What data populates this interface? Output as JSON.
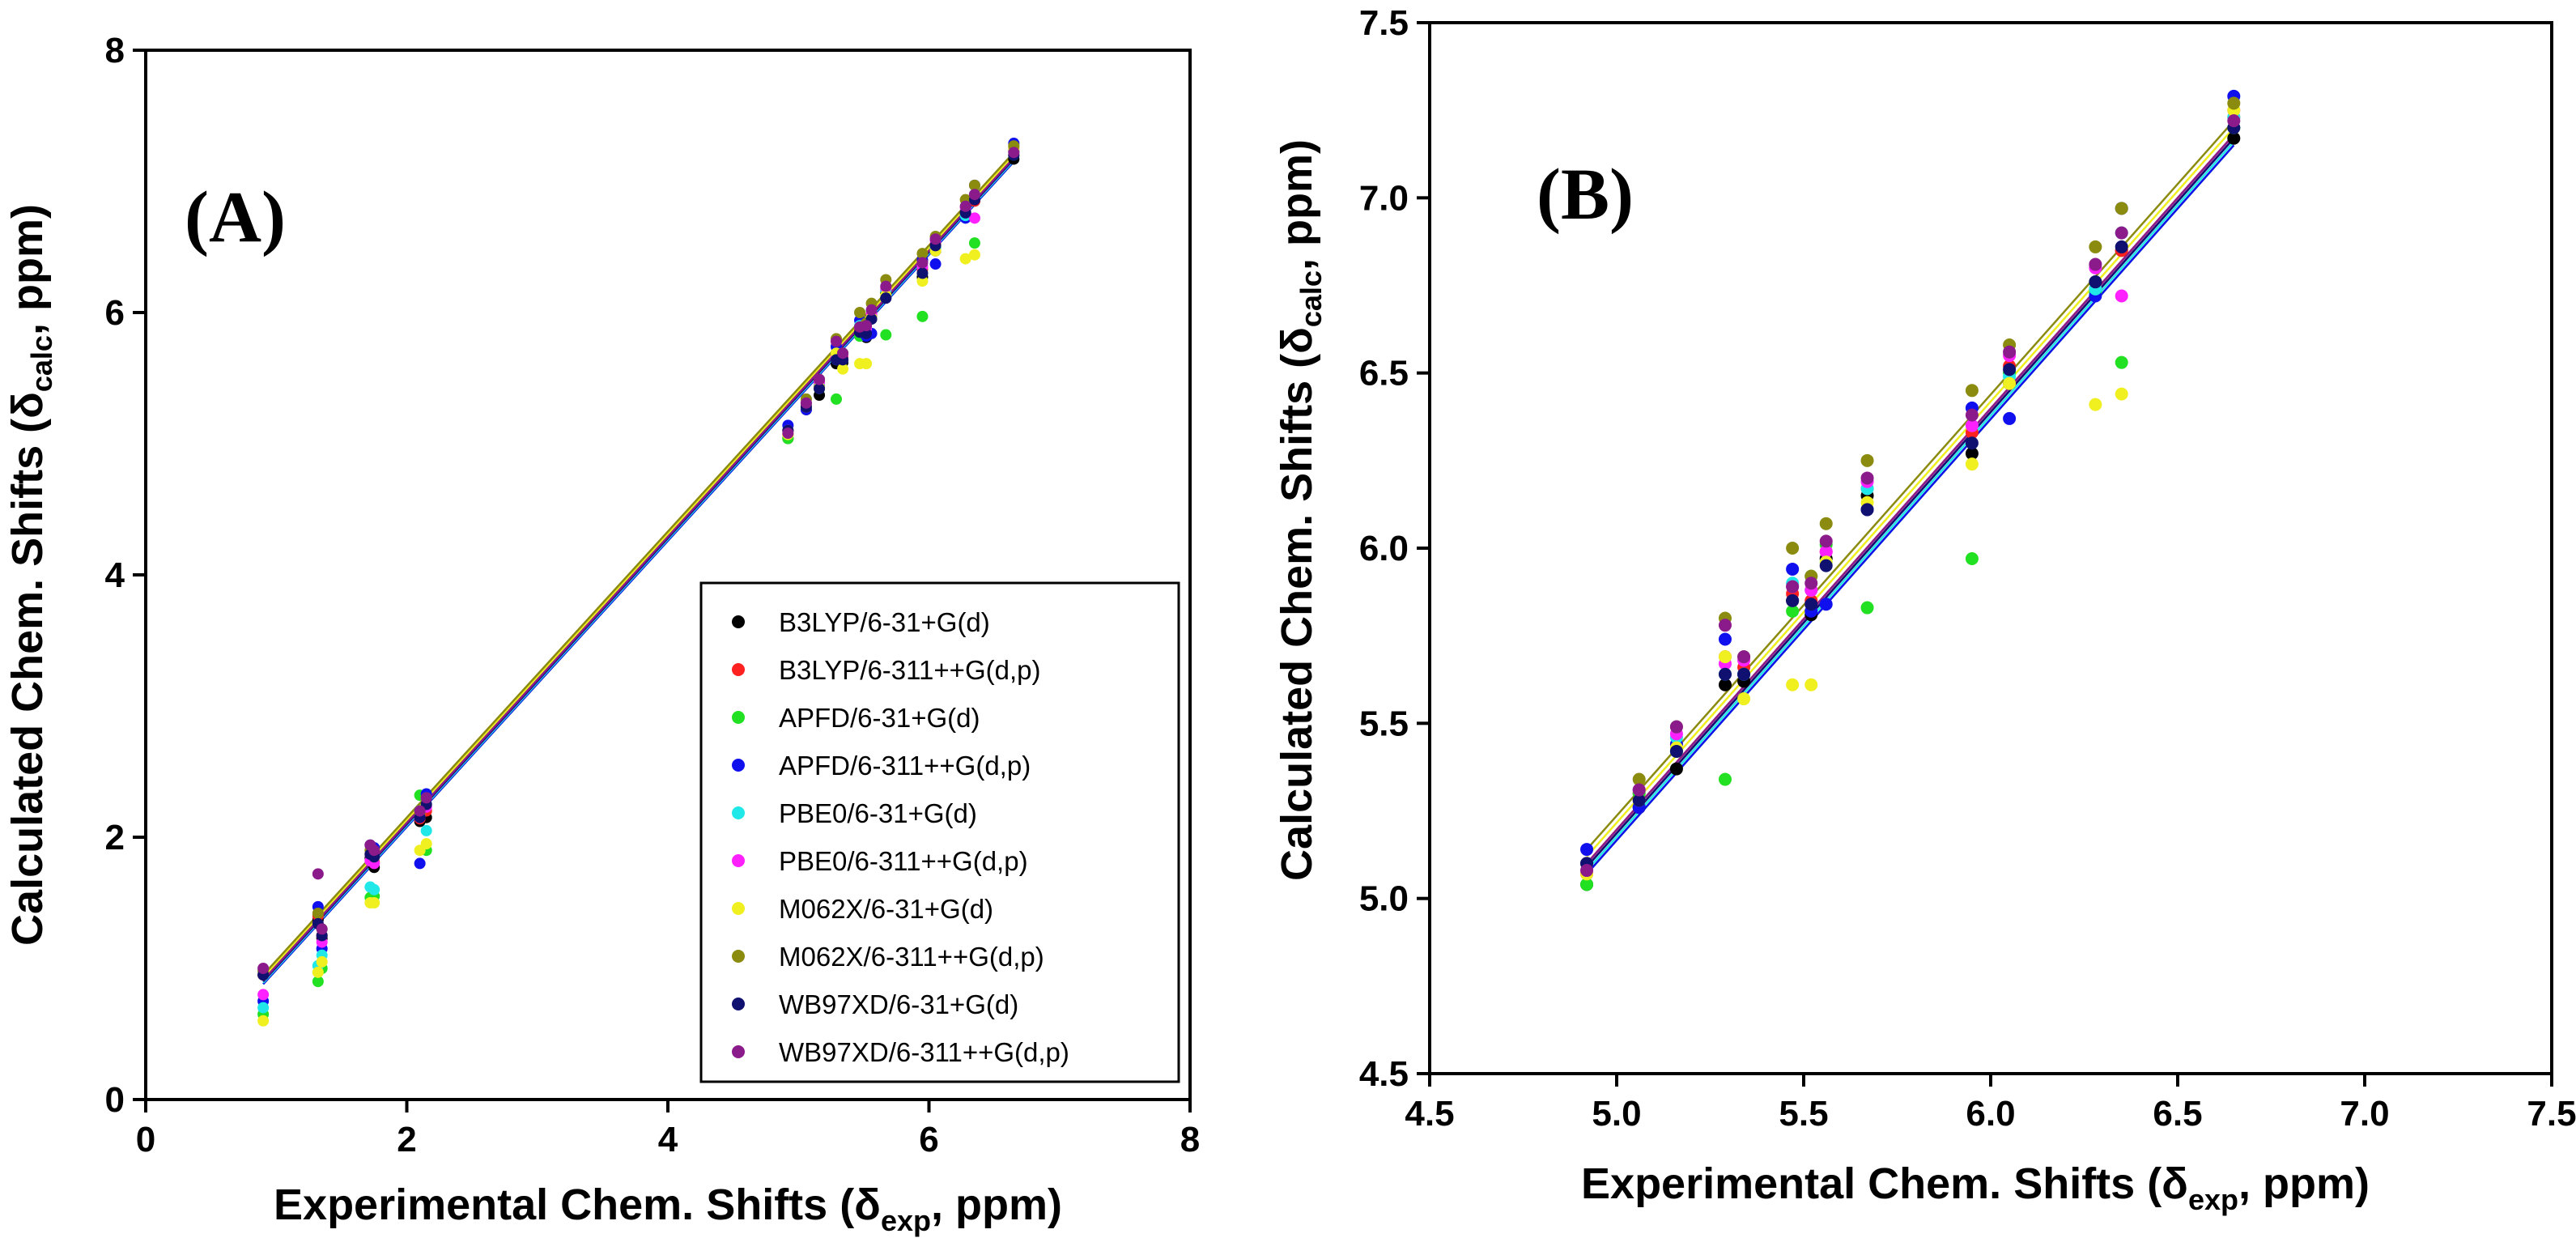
{
  "chart_data": [
    {
      "type": "scatter",
      "panel_label": "(A)",
      "xlabel": {
        "main": "Experimental Chem. Shifts (δ",
        "sub": "exp",
        "tail": ", ppm)"
      },
      "ylabel": {
        "main": "Calculated Chem. Shifts (δ",
        "sub": "calc",
        "tail": ", ppm)"
      },
      "xlim": [
        0,
        8
      ],
      "ylim": [
        0,
        8
      ],
      "xticks": [
        0,
        2,
        4,
        6,
        8
      ],
      "yticks": [
        0,
        2,
        4,
        6,
        8
      ],
      "xtick_labels": [
        "0",
        "2",
        "4",
        "6",
        "8"
      ],
      "ytick_labels": [
        "0",
        "2",
        "4",
        "6",
        "8"
      ],
      "legend_position": "lower-right",
      "fit_line_range": [
        0.9,
        6.65
      ]
    },
    {
      "type": "scatter",
      "panel_label": "(B)",
      "xlabel": {
        "main": "Experimental Chem. Shifts (δ",
        "sub": "exp",
        "tail": ", ppm)"
      },
      "ylabel": {
        "main": "Calculated Chem. Shifts (δ",
        "sub": "calc",
        "tail": ", ppm)"
      },
      "xlim": [
        4.5,
        7.5
      ],
      "ylim": [
        4.5,
        7.5
      ],
      "xticks": [
        4.5,
        5.0,
        5.5,
        6.0,
        6.5,
        7.0,
        7.5
      ],
      "yticks": [
        4.5,
        5.0,
        5.5,
        6.0,
        6.5,
        7.0,
        7.5
      ],
      "xtick_labels": [
        "4.5",
        "5.0",
        "5.5",
        "6.0",
        "6.5",
        "7.0",
        "7.5"
      ],
      "ytick_labels": [
        "4.5",
        "5.0",
        "5.5",
        "6.0",
        "6.5",
        "7.0",
        "7.5"
      ],
      "legend_position": "none",
      "fit_line_range": [
        4.92,
        6.65
      ]
    }
  ],
  "experimental_shifts": [
    0.9,
    1.32,
    1.35,
    1.72,
    1.75,
    2.1,
    2.15,
    4.92,
    5.06,
    5.16,
    5.29,
    5.34,
    5.47,
    5.52,
    5.56,
    5.67,
    5.95,
    6.05,
    6.28,
    6.35,
    6.65
  ],
  "series": [
    {
      "name": "B3LYP/6-31+G(d)",
      "color": "#000000",
      "slope": 1.0,
      "intercept": -0.02,
      "offsets": [
        0.05,
        0.05,
        -0.12,
        0.12,
        0.02,
        0.02,
        0.0,
        0.12,
        0.2,
        0.21,
        0.32,
        0.28,
        0.38,
        0.29,
        0.41,
        0.48,
        0.32,
        0.42,
        0.48,
        0.5,
        0.52
      ]
    },
    {
      "name": "B3LYP/6-311++G(d,p)",
      "color": "#ff2020",
      "slope": 1.0,
      "intercept": -0.02,
      "offsets": [
        0.05,
        0.08,
        -0.1,
        0.15,
        0.06,
        0.04,
        0.05,
        0.15,
        0.24,
        0.28,
        0.4,
        0.32,
        0.4,
        0.33,
        0.43,
        0.5,
        0.38,
        0.47,
        0.46,
        0.5,
        0.58
      ]
    },
    {
      "name": "APFD/6-31+G(d)",
      "color": "#22e022",
      "slope": 1.0,
      "intercept": -0.05,
      "offsets": [
        -0.25,
        -0.42,
        -0.35,
        -0.18,
        -0.2,
        0.22,
        -0.25,
        0.12,
        0.24,
        0.26,
        0.05,
        0.3,
        0.35,
        0.4,
        0.45,
        0.16,
        0.02,
        0.45,
        0.45,
        0.18,
        0.55
      ]
    },
    {
      "name": "APFD/6-311++G(d,p)",
      "color": "#1010ee",
      "slope": 1.0,
      "intercept": -0.05,
      "offsets": [
        -0.15,
        0.15,
        -0.2,
        0.22,
        0.17,
        -0.3,
        0.18,
        0.22,
        0.2,
        0.28,
        0.45,
        0.3,
        0.47,
        0.3,
        0.28,
        0.44,
        0.45,
        0.32,
        0.44,
        0.62,
        0.64
      ]
    },
    {
      "name": "PBE0/6-31+G(d)",
      "color": "#20e8e8",
      "slope": 1.0,
      "intercept": -0.04,
      "offsets": [
        -0.2,
        -0.3,
        -0.25,
        -0.1,
        -0.15,
        0.1,
        -0.1,
        0.18,
        0.25,
        0.3,
        0.35,
        0.3,
        0.43,
        0.36,
        0.4,
        0.5,
        0.4,
        0.44,
        0.46,
        0.55,
        0.58
      ]
    },
    {
      "name": "PBE0/6-311++G(d,p)",
      "color": "#ff20ff",
      "slope": 1.0,
      "intercept": -0.03,
      "offsets": [
        -0.1,
        0.02,
        -0.15,
        0.1,
        0.05,
        0.05,
        0.08,
        0.18,
        0.25,
        0.31,
        0.38,
        0.34,
        0.42,
        0.36,
        0.43,
        0.52,
        0.4,
        0.5,
        0.52,
        0.37,
        0.6
      ]
    },
    {
      "name": "M062X/6-31+G(d)",
      "color": "#f0f020",
      "slope": 1.0,
      "intercept": 0.0,
      "offsets": [
        -0.3,
        -0.35,
        -0.3,
        -0.22,
        -0.25,
        -0.2,
        -0.2,
        0.15,
        0.22,
        0.27,
        0.4,
        0.23,
        0.14,
        0.09,
        0.4,
        0.46,
        0.29,
        0.42,
        0.13,
        0.09,
        0.6
      ]
    },
    {
      "name": "M062X/6-311++G(d,p)",
      "color": "#8b8b10",
      "slope": 1.0,
      "intercept": 0.02,
      "offsets": [
        0.08,
        0.1,
        -0.05,
        0.18,
        0.1,
        0.08,
        0.15,
        0.18,
        0.28,
        0.33,
        0.51,
        0.35,
        0.53,
        0.4,
        0.51,
        0.58,
        0.5,
        0.53,
        0.58,
        0.62,
        0.62
      ]
    },
    {
      "name": "WB97XD/6-31+G(d)",
      "color": "#101070",
      "slope": 1.0,
      "intercept": -0.03,
      "offsets": [
        0.05,
        0.02,
        -0.1,
        0.15,
        0.1,
        0.05,
        0.1,
        0.18,
        0.22,
        0.26,
        0.35,
        0.3,
        0.38,
        0.32,
        0.39,
        0.44,
        0.35,
        0.46,
        0.48,
        0.51,
        0.55
      ]
    },
    {
      "name": "WB97XD/6-311++G(d,p)",
      "color": "#8b1a8b",
      "slope": 1.0,
      "intercept": -0.02,
      "offsets": [
        0.1,
        0.4,
        -0.05,
        0.22,
        0.15,
        0.1,
        0.15,
        0.16,
        0.25,
        0.33,
        0.49,
        0.35,
        0.42,
        0.38,
        0.46,
        0.53,
        0.43,
        0.51,
        0.53,
        0.55,
        0.57
      ]
    }
  ]
}
